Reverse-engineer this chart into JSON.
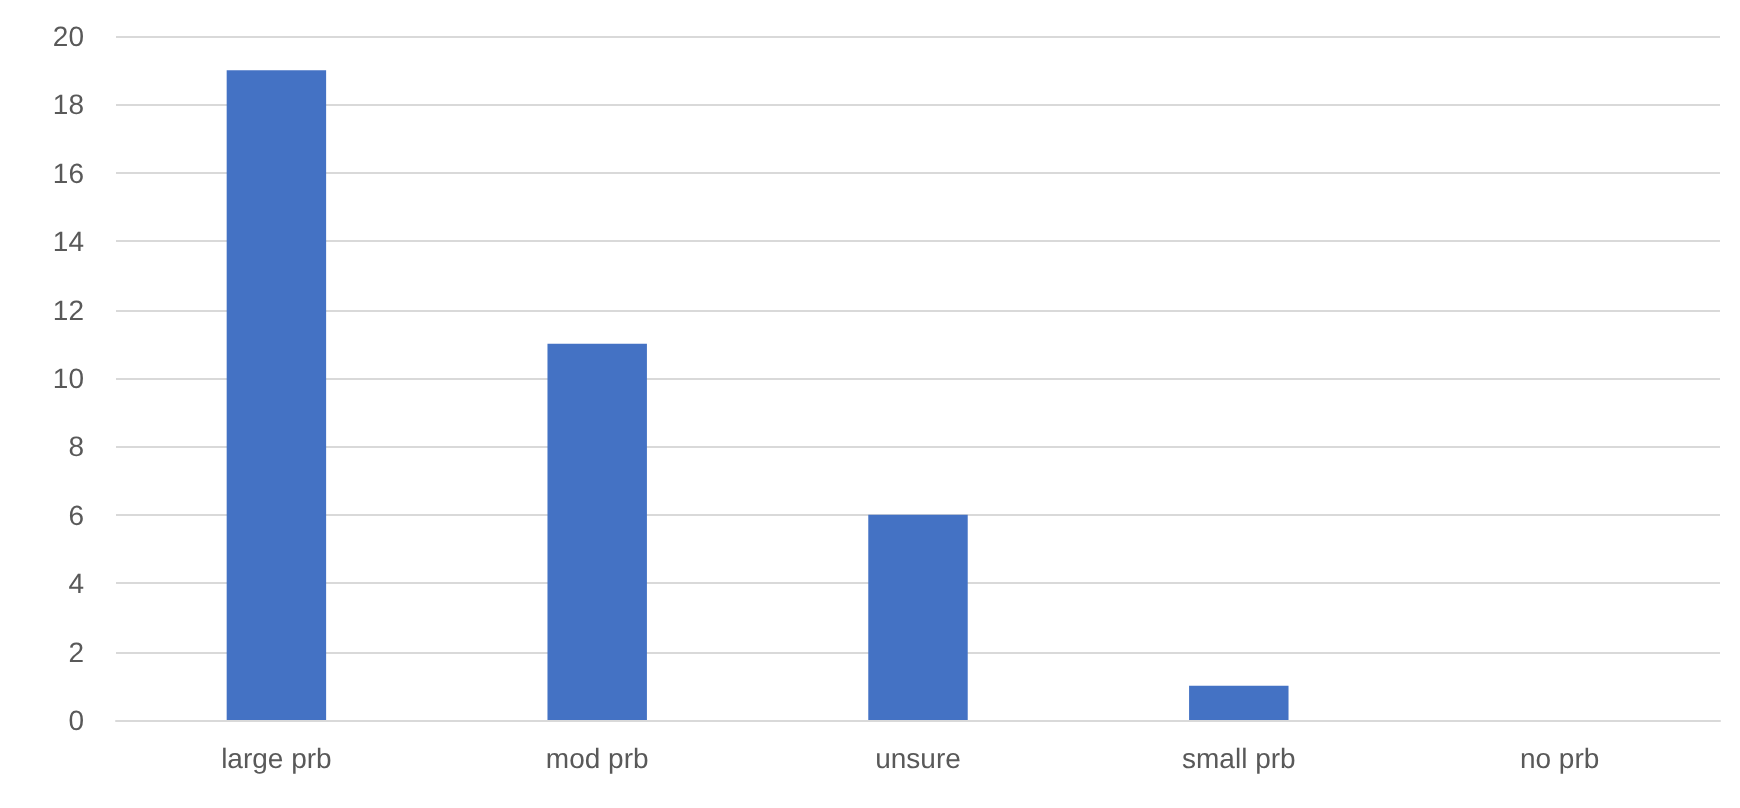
{
  "chart_data": {
    "type": "bar",
    "categories": [
      "large prb",
      "mod prb",
      "unsure",
      "small prb",
      "no prb"
    ],
    "values": [
      19,
      11,
      6,
      1,
      0
    ],
    "color": "#4472c4",
    "ylim": [
      0,
      20
    ],
    "yticks": [
      0,
      2,
      4,
      6,
      8,
      10,
      12,
      14,
      16,
      18,
      20
    ],
    "grid": "y"
  }
}
